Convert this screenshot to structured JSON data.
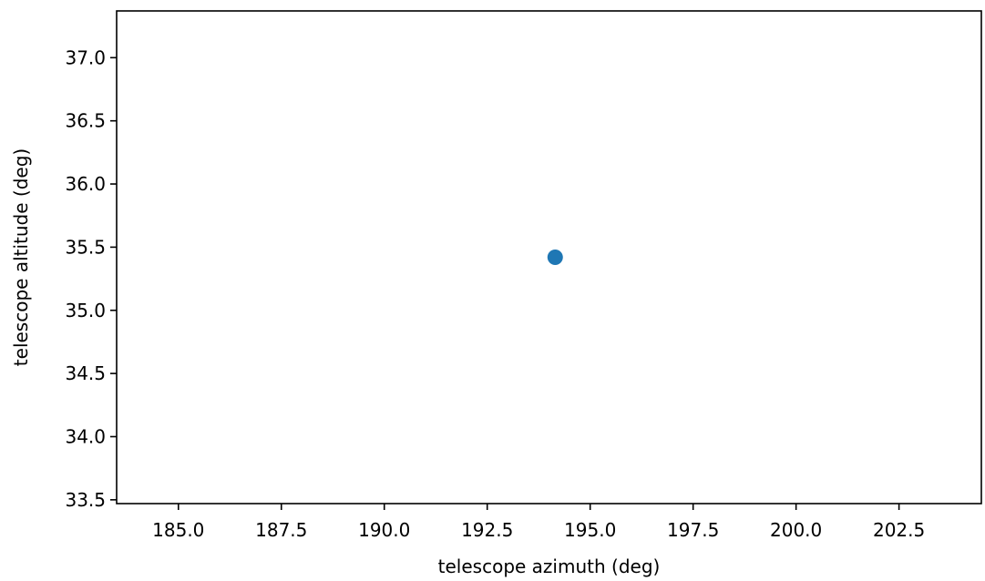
{
  "chart_data": {
    "type": "scatter",
    "title": "",
    "xlabel": "telescope azimuth (deg)",
    "ylabel": "telescope altitude (deg)",
    "xlim": [
      183.5,
      204.5
    ],
    "ylim": [
      33.47,
      37.37
    ],
    "x_ticks": [
      185.0,
      187.5,
      190.0,
      192.5,
      195.0,
      197.5,
      200.0,
      202.5
    ],
    "x_tick_labels": [
      "185.0",
      "187.5",
      "190.0",
      "192.5",
      "195.0",
      "197.5",
      "200.0",
      "202.5"
    ],
    "y_ticks": [
      33.5,
      34.0,
      34.5,
      35.0,
      35.5,
      36.0,
      36.5,
      37.0
    ],
    "y_tick_labels": [
      "33.5",
      "34.0",
      "34.5",
      "35.0",
      "35.5",
      "36.0",
      "36.5",
      "37.0"
    ],
    "grid": false,
    "series": [
      {
        "x": [
          194.15
        ],
        "y": [
          35.42
        ],
        "color": "#1f77b4"
      }
    ]
  }
}
